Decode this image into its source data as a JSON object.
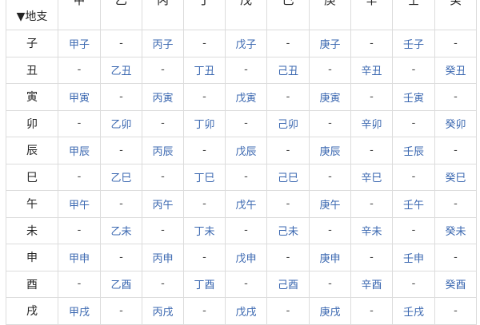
{
  "table": {
    "corner_label": "▼地支",
    "stems": [
      "甲",
      "乙",
      "丙",
      "丁",
      "戊",
      "己",
      "庚",
      "辛",
      "壬",
      "癸"
    ],
    "rows": [
      {
        "branch": "子",
        "cells": [
          "甲子",
          "-",
          "丙子",
          "-",
          "戊子",
          "-",
          "庚子",
          "-",
          "壬子",
          "-"
        ]
      },
      {
        "branch": "丑",
        "cells": [
          "-",
          "乙丑",
          "-",
          "丁丑",
          "-",
          "己丑",
          "-",
          "辛丑",
          "-",
          "癸丑"
        ]
      },
      {
        "branch": "寅",
        "cells": [
          "甲寅",
          "-",
          "丙寅",
          "-",
          "戊寅",
          "-",
          "庚寅",
          "-",
          "壬寅",
          "-"
        ]
      },
      {
        "branch": "卯",
        "cells": [
          "-",
          "乙卯",
          "-",
          "丁卯",
          "-",
          "己卯",
          "-",
          "辛卯",
          "-",
          "癸卯"
        ]
      },
      {
        "branch": "辰",
        "cells": [
          "甲辰",
          "-",
          "丙辰",
          "-",
          "戊辰",
          "-",
          "庚辰",
          "-",
          "壬辰",
          "-"
        ]
      },
      {
        "branch": "巳",
        "cells": [
          "-",
          "乙巳",
          "-",
          "丁巳",
          "-",
          "己巳",
          "-",
          "辛巳",
          "-",
          "癸巳"
        ]
      },
      {
        "branch": "午",
        "cells": [
          "甲午",
          "-",
          "丙午",
          "-",
          "戊午",
          "-",
          "庚午",
          "-",
          "壬午",
          "-"
        ]
      },
      {
        "branch": "未",
        "cells": [
          "-",
          "乙未",
          "-",
          "丁未",
          "-",
          "己未",
          "-",
          "辛未",
          "-",
          "癸未"
        ]
      },
      {
        "branch": "申",
        "cells": [
          "甲申",
          "-",
          "丙申",
          "-",
          "戊申",
          "-",
          "庚申",
          "-",
          "壬申",
          "-"
        ]
      },
      {
        "branch": "酉",
        "cells": [
          "-",
          "乙酉",
          "-",
          "丁酉",
          "-",
          "己酉",
          "-",
          "辛酉",
          "-",
          "癸酉"
        ]
      },
      {
        "branch": "戌",
        "cells": [
          "甲戌",
          "-",
          "丙戌",
          "-",
          "戊戌",
          "-",
          "庚戌",
          "-",
          "壬戌",
          "-"
        ]
      }
    ]
  },
  "colors": {
    "link": "#3a67b0",
    "grid": "#dcdcdc",
    "text": "#222222"
  }
}
